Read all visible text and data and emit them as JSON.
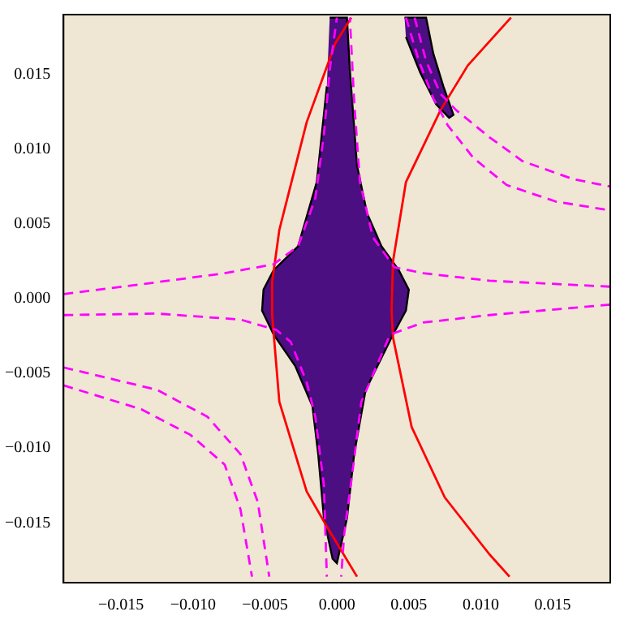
{
  "chart_data": {
    "type": "line",
    "xlim": [
      -0.019,
      0.019
    ],
    "ylim": [
      -0.019,
      0.019
    ],
    "xticks": [
      {
        "value": -0.015,
        "label": "−0.015"
      },
      {
        "value": -0.01,
        "label": "−0.010"
      },
      {
        "value": -0.005,
        "label": "−0.005"
      },
      {
        "value": 0,
        "label": "0.000"
      },
      {
        "value": 0.005,
        "label": "0.005"
      },
      {
        "value": 0.01,
        "label": "0.010"
      },
      {
        "value": 0.015,
        "label": "0.015"
      }
    ],
    "yticks": [
      {
        "value": -0.015,
        "label": "−0.015"
      },
      {
        "value": -0.01,
        "label": "−0.010"
      },
      {
        "value": -0.005,
        "label": "−0.005"
      },
      {
        "value": 0,
        "label": "0.000"
      },
      {
        "value": 0.005,
        "label": "0.005"
      },
      {
        "value": 0.01,
        "label": "0.010"
      },
      {
        "value": 0.015,
        "label": "0.015"
      }
    ],
    "grid": false,
    "legend": false,
    "marker": "none",
    "series": [
      {
        "type": "area",
        "color": "#4b0f82",
        "x": [
          -0.0005,
          0.0007,
          0.0009,
          0.0014,
          0.0021,
          0.0031,
          0.0043,
          0.005,
          0.0048,
          0.0039,
          0.002,
          0.0012,
          0.0007,
          0,
          -0.0003,
          -0.0009,
          -0.0013,
          -0.0017,
          -0.0029,
          -0.0044,
          -0.0052,
          -0.0051,
          -0.0044,
          -0.0027,
          -0.0014,
          -0.0007
        ],
        "values": [
          0.0188,
          0.0188,
          0.0153,
          0.0089,
          0.0057,
          0.0035,
          0.0019,
          0.0006,
          -0.0008,
          -0.0024,
          -0.0061,
          -0.0104,
          -0.0147,
          -0.0177,
          -0.0174,
          -0.0147,
          -0.0104,
          -0.0072,
          -0.0045,
          -0.0024,
          -0.0008,
          0.0006,
          0.0019,
          0.0035,
          0.0078,
          0.0142
        ]
      },
      {
        "type": "area",
        "color": "#4b0f82",
        "x": [
          0.0047,
          0.0062,
          0.0067,
          0.0074,
          0.0081,
          0.0078,
          0.0069,
          0.0058,
          0.0048
        ],
        "values": [
          0.0188,
          0.0188,
          0.0164,
          0.0142,
          0.0123,
          0.0121,
          0.013,
          0.0151,
          0.0175
        ]
      },
      {
        "color": "#ff00ff",
        "line_style": "dashed",
        "x": [
          -0.019,
          -0.0125,
          -0.0078,
          -0.0044,
          -0.0027,
          -0.0015,
          -0.0009,
          -0.0005,
          0
        ],
        "values": [
          0.0003,
          0.0011,
          0.0017,
          0.0023,
          0.0035,
          0.0067,
          0.011,
          0.0153,
          0.0188
        ]
      },
      {
        "color": "#ff00ff",
        "line_style": "dashed",
        "x": [
          0.019,
          0.0106,
          0.006,
          0.004,
          0.0025,
          0.0016,
          0.0012,
          0.0009
        ],
        "values": [
          0.0008,
          0.0012,
          0.0017,
          0.0021,
          0.0041,
          0.0078,
          0.0132,
          0.0188
        ]
      },
      {
        "color": "#ff00ff",
        "line_style": "dashed",
        "x": [
          -0.019,
          -0.0125,
          -0.0067,
          -0.0042,
          -0.0032,
          -0.0021,
          -0.0015,
          -0.0009,
          -0.0007
        ],
        "values": [
          -0.0011,
          -0.001,
          -0.0014,
          -0.0021,
          -0.0029,
          -0.0056,
          -0.0079,
          -0.0125,
          -0.0186
        ]
      },
      {
        "color": "#ff00ff",
        "line_style": "dashed",
        "x": [
          0.019,
          0.0106,
          0.006,
          0.0037,
          0.0017,
          0.001,
          0.0005,
          0.0003
        ],
        "values": [
          -0.0004,
          -0.0011,
          -0.0016,
          -0.0024,
          -0.0069,
          -0.0122,
          -0.0158,
          -0.0186
        ]
      },
      {
        "color": "#ff00ff",
        "line_style": "dashed",
        "x": [
          -0.019,
          -0.0136,
          -0.0102,
          -0.0078,
          -0.0067,
          -0.0059
        ],
        "values": [
          -0.0058,
          -0.0074,
          -0.0091,
          -0.0111,
          -0.0141,
          -0.0186
        ]
      },
      {
        "color": "#ff00ff",
        "line_style": "dashed",
        "x": [
          -0.019,
          -0.0125,
          -0.009,
          -0.0067,
          -0.0055,
          -0.0047
        ],
        "values": [
          -0.0046,
          -0.0061,
          -0.0079,
          -0.0104,
          -0.0136,
          -0.0186
        ]
      },
      {
        "color": "#ff00ff",
        "line_style": "dashed",
        "x": [
          0.0054,
          0.0062,
          0.0072,
          0.0083,
          0.0106,
          0.0129,
          0.0164,
          0.019
        ],
        "values": [
          0.0188,
          0.0159,
          0.0137,
          0.0126,
          0.0108,
          0.0092,
          0.008,
          0.0075
        ]
      },
      {
        "color": "#ff00ff",
        "line_style": "dashed",
        "x": [
          0.0048,
          0.0057,
          0.0067,
          0.0077,
          0.0095,
          0.0118,
          0.0152,
          0.019
        ],
        "values": [
          0.0188,
          0.0159,
          0.0134,
          0.0116,
          0.0094,
          0.0076,
          0.0065,
          0.0059
        ]
      },
      {
        "color": "#ff0000",
        "line_style": "solid",
        "x": [
          0.001,
          -0.0001,
          -0.0021,
          -0.004,
          -0.0045,
          -0.0045,
          -0.004,
          -0.0021,
          -0.0006,
          0.0014
        ],
        "values": [
          0.0188,
          0.0171,
          0.0118,
          0.0046,
          0.0011,
          -0.0011,
          -0.0069,
          -0.0129,
          -0.0154,
          -0.0186
        ]
      },
      {
        "color": "#ff0000",
        "line_style": "solid",
        "x": [
          0.0121,
          0.0091,
          0.0072,
          0.0048,
          0.0039,
          0.0038,
          0.0039,
          0.0052,
          0.0075,
          0.0106,
          0.012
        ],
        "values": [
          0.0188,
          0.0156,
          0.0126,
          0.0078,
          0.0025,
          -0.0008,
          -0.0026,
          -0.0086,
          -0.0133,
          -0.0171,
          -0.0186
        ]
      }
    ]
  }
}
